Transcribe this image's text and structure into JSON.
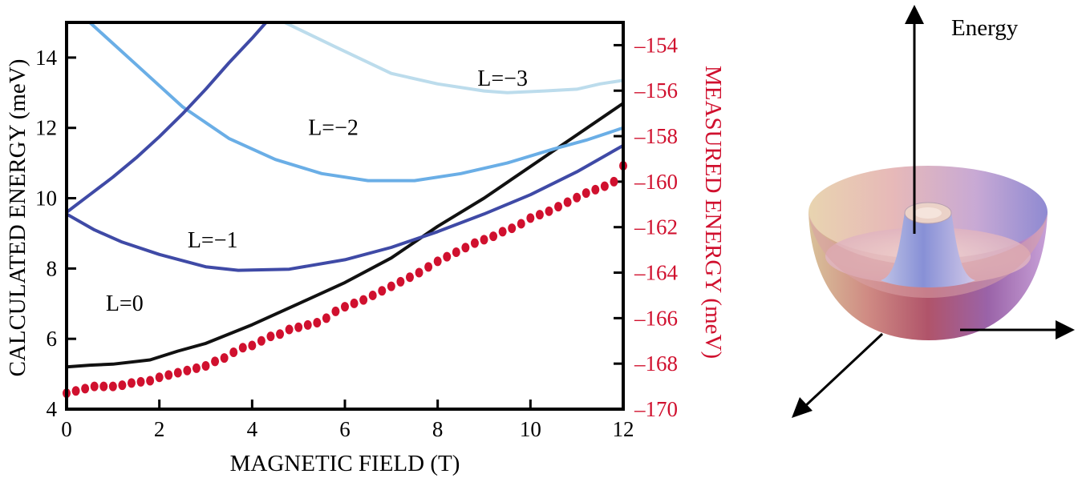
{
  "colors": {
    "measured": "#d0102e",
    "frame": "#000000",
    "L0": "#111111",
    "L1": "#3f4aa6",
    "L2": "#6aaee6",
    "L3": "#bcdcec",
    "Lhigh": "#3f4aa6"
  },
  "chart_data": {
    "type": "line",
    "title": "",
    "xlabel": "MAGNETIC FIELD (T)",
    "ylabel": "CALCULATED ENERGY (meV)",
    "y2label": "MEASURED ENERGY (meV)",
    "xlim": [
      0,
      12
    ],
    "ylim": [
      4,
      15
    ],
    "y2lim": [
      -170,
      -153
    ],
    "x_ticks": [
      "0",
      "2",
      "4",
      "6",
      "8",
      "10",
      "12"
    ],
    "y_ticks": [
      "4",
      "6",
      "8",
      "10",
      "12",
      "14"
    ],
    "y2_ticks": [
      "–154",
      "–156",
      "–158",
      "–160",
      "–162",
      "–164",
      "–166",
      "–168",
      "–170"
    ],
    "series": [
      {
        "name": "L = 0",
        "label": "L=0",
        "color_key": "L0",
        "label_at": [
          1.25,
          6.8
        ],
        "points": [
          [
            0,
            5.2
          ],
          [
            0.5,
            5.25
          ],
          [
            1,
            5.28
          ],
          [
            1.8,
            5.4
          ],
          [
            2.4,
            5.65
          ],
          [
            3,
            5.87
          ],
          [
            4,
            6.4
          ],
          [
            5,
            7.0
          ],
          [
            6,
            7.6
          ],
          [
            7,
            8.3
          ],
          [
            8,
            9.2
          ],
          [
            9,
            10.0
          ],
          [
            10,
            10.9
          ],
          [
            11,
            11.8
          ],
          [
            12,
            12.7
          ]
        ]
      },
      {
        "name": "L = −1",
        "label": "L=−1",
        "color_key": "L1",
        "label_at": [
          3.15,
          8.6
        ],
        "points": [
          [
            0,
            9.55
          ],
          [
            0.6,
            9.1
          ],
          [
            1.2,
            8.75
          ],
          [
            2,
            8.4
          ],
          [
            3,
            8.05
          ],
          [
            3.7,
            7.95
          ],
          [
            4.8,
            7.98
          ],
          [
            6,
            8.25
          ],
          [
            7,
            8.6
          ],
          [
            8,
            9.05
          ],
          [
            9,
            9.55
          ],
          [
            10,
            10.1
          ],
          [
            11,
            10.75
          ],
          [
            12,
            11.5
          ]
        ]
      },
      {
        "name": "L = −2",
        "label": "L=−2",
        "color_key": "L2",
        "label_at": [
          5.75,
          11.8
        ],
        "points": [
          [
            0.5,
            15.0
          ],
          [
            1.5,
            13.8
          ],
          [
            2.5,
            12.6
          ],
          [
            3.5,
            11.7
          ],
          [
            4.5,
            11.1
          ],
          [
            5.5,
            10.7
          ],
          [
            6.5,
            10.5
          ],
          [
            7.5,
            10.5
          ],
          [
            8.5,
            10.7
          ],
          [
            9.5,
            11.0
          ],
          [
            10.5,
            11.4
          ],
          [
            11.2,
            11.65
          ],
          [
            12,
            12.0
          ]
        ]
      },
      {
        "name": "L = −3",
        "label": "L=−3",
        "color_key": "L3",
        "label_at": [
          9.4,
          13.2
        ],
        "points": [
          [
            4.7,
            15.0
          ],
          [
            5.8,
            14.3
          ],
          [
            7,
            13.55
          ],
          [
            8,
            13.25
          ],
          [
            9,
            13.05
          ],
          [
            9.5,
            13.0
          ],
          [
            10.3,
            13.05
          ],
          [
            11,
            13.1
          ],
          [
            11.5,
            13.25
          ],
          [
            12,
            13.35
          ]
        ]
      },
      {
        "name": "higher state",
        "label": "",
        "color_key": "Lhigh",
        "label_at": null,
        "points": [
          [
            0,
            9.6
          ],
          [
            0.5,
            10.1
          ],
          [
            1,
            10.6
          ],
          [
            1.5,
            11.15
          ],
          [
            2,
            11.75
          ],
          [
            2.5,
            12.4
          ],
          [
            3,
            13.1
          ],
          [
            3.5,
            13.85
          ],
          [
            4.0,
            14.55
          ],
          [
            4.3,
            15.0
          ]
        ]
      }
    ],
    "measured": {
      "name": "Measured energy",
      "color_key": "measured",
      "points": [
        [
          0,
          -169.3
        ],
        [
          0.2,
          -169.2
        ],
        [
          0.4,
          -169.1
        ],
        [
          0.6,
          -169.0
        ],
        [
          0.8,
          -169.0
        ],
        [
          1,
          -169.0
        ],
        [
          1.2,
          -168.95
        ],
        [
          1.4,
          -168.85
        ],
        [
          1.6,
          -168.8
        ],
        [
          1.8,
          -168.75
        ],
        [
          2,
          -168.6
        ],
        [
          2.2,
          -168.5
        ],
        [
          2.4,
          -168.4
        ],
        [
          2.6,
          -168.3
        ],
        [
          2.8,
          -168.2
        ],
        [
          3.0,
          -168.1
        ],
        [
          3.2,
          -167.9
        ],
        [
          3.4,
          -167.75
        ],
        [
          3.6,
          -167.5
        ],
        [
          3.8,
          -167.3
        ],
        [
          4.0,
          -167.2
        ],
        [
          4.2,
          -167.0
        ],
        [
          4.4,
          -166.8
        ],
        [
          4.6,
          -166.7
        ],
        [
          4.8,
          -166.5
        ],
        [
          5.0,
          -166.4
        ],
        [
          5.2,
          -166.3
        ],
        [
          5.4,
          -166.2
        ],
        [
          5.6,
          -166.0
        ],
        [
          5.8,
          -165.7
        ],
        [
          6.0,
          -165.5
        ],
        [
          6.2,
          -165.35
        ],
        [
          6.4,
          -165.2
        ],
        [
          6.6,
          -165.0
        ],
        [
          6.8,
          -164.8
        ],
        [
          7.0,
          -164.6
        ],
        [
          7.2,
          -164.4
        ],
        [
          7.4,
          -164.2
        ],
        [
          7.6,
          -164.0
        ],
        [
          7.8,
          -163.75
        ],
        [
          8.0,
          -163.5
        ],
        [
          8.2,
          -163.3
        ],
        [
          8.4,
          -163.1
        ],
        [
          8.6,
          -162.9
        ],
        [
          8.8,
          -162.7
        ],
        [
          9.0,
          -162.55
        ],
        [
          9.2,
          -162.4
        ],
        [
          9.4,
          -162.2
        ],
        [
          9.6,
          -162.05
        ],
        [
          9.8,
          -161.85
        ],
        [
          10.0,
          -161.6
        ],
        [
          10.2,
          -161.45
        ],
        [
          10.4,
          -161.3
        ],
        [
          10.6,
          -161.1
        ],
        [
          10.8,
          -160.9
        ],
        [
          11.0,
          -160.7
        ],
        [
          11.2,
          -160.5
        ],
        [
          11.4,
          -160.35
        ],
        [
          11.6,
          -160.2
        ],
        [
          11.8,
          -160.0
        ],
        [
          12,
          -159.3
        ]
      ]
    }
  },
  "diagram": {
    "axis_label": "Energy"
  }
}
